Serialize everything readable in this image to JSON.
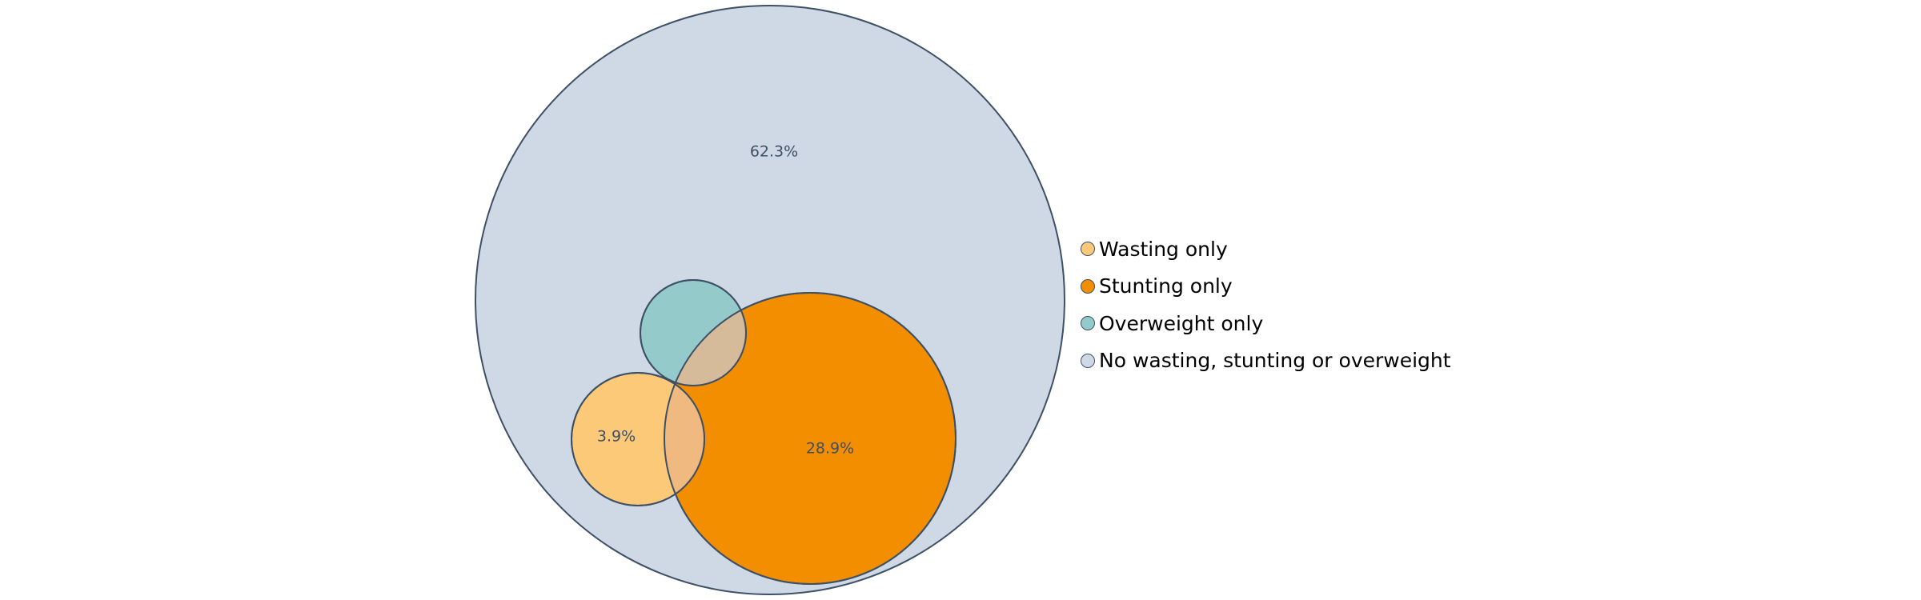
{
  "chart_data": {
    "type": "venn",
    "sets": [
      {
        "name": "Wasting only",
        "color": "#fcc978",
        "value_label": "3.9%",
        "value": 3.9
      },
      {
        "name": "Stunting only",
        "color": "#f28e00",
        "value_label": "28.9%",
        "value": 28.9
      },
      {
        "name": "Overweight only",
        "color": "#94cbca",
        "value_label": "",
        "value": null
      },
      {
        "name": "No wasting, stunting or overweight",
        "color": "#cfd9e5",
        "value_label": "62.3%",
        "value": 62.3
      }
    ],
    "overlap_colors": {
      "wasting_stunting": "#f0b97f",
      "overweight_stunting": "#d6bb9a"
    },
    "outline_color": "#3e5066",
    "legend": {
      "position": "right"
    }
  }
}
